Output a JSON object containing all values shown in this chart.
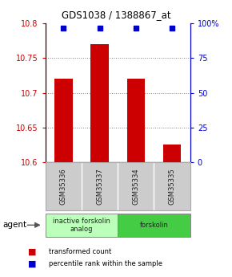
{
  "title": "GDS1038 / 1388867_at",
  "samples": [
    "GSM35336",
    "GSM35337",
    "GSM35334",
    "GSM35335"
  ],
  "bar_values": [
    10.72,
    10.77,
    10.72,
    10.625
  ],
  "percentile_values": [
    97.0,
    97.0,
    97.0,
    97.0
  ],
  "ylim_left": [
    10.6,
    10.8
  ],
  "ylim_right": [
    0,
    100
  ],
  "yticks_left": [
    10.6,
    10.65,
    10.7,
    10.75,
    10.8
  ],
  "yticks_right": [
    0,
    25,
    50,
    75,
    100
  ],
  "bar_color": "#cc0000",
  "percentile_color": "#0000cc",
  "bar_width": 0.5,
  "groups": [
    {
      "label": "inactive forskolin\nanalog",
      "color": "#bbffbb"
    },
    {
      "label": "forskolin",
      "color": "#44cc44"
    }
  ],
  "agent_label": "agent",
  "legend_items": [
    {
      "color": "#cc0000",
      "label": "transformed count"
    },
    {
      "color": "#0000cc",
      "label": "percentile rank within the sample"
    }
  ],
  "title_color": "#000000",
  "left_tick_color": "#cc0000",
  "right_tick_color": "#0000cc",
  "background_color": "#ffffff",
  "sample_box_color": "#cccccc"
}
